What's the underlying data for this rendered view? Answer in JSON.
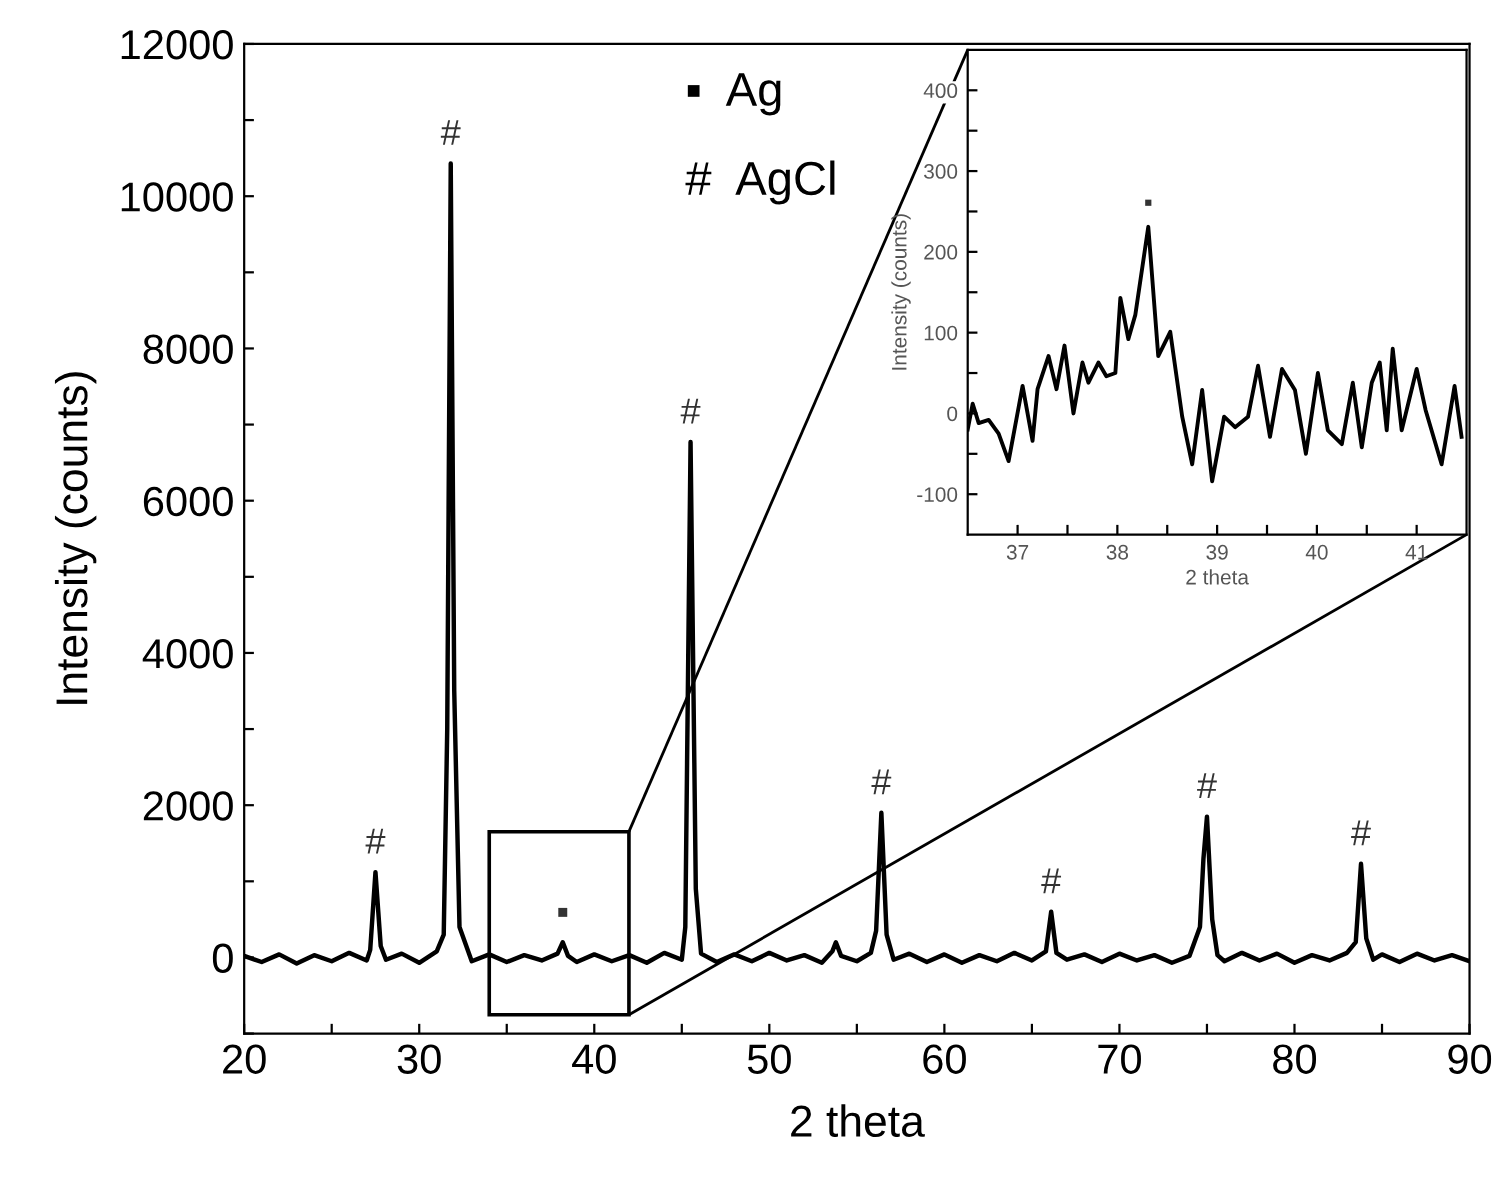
{
  "chart_data": [
    {
      "type": "line",
      "xlabel": "2 theta",
      "ylabel": "Intensity (counts)",
      "x": [
        20,
        21,
        22,
        23,
        24,
        25,
        26,
        27,
        27.2,
        27.5,
        27.8,
        28.1,
        29,
        30,
        31,
        31.4,
        31.6,
        31.8,
        32.0,
        32.3,
        33,
        34,
        35,
        36,
        37,
        37.9,
        38.2,
        38.5,
        39,
        40,
        41,
        42,
        43,
        44,
        45,
        45.2,
        45.5,
        45.8,
        46.1,
        47,
        48,
        49,
        50,
        51,
        52,
        53,
        53.6,
        53.8,
        54.1,
        55,
        55.8,
        56.1,
        56.4,
        56.7,
        57.1,
        58,
        59,
        60,
        61,
        62,
        63,
        64,
        65,
        65.8,
        66.1,
        66.4,
        67,
        68,
        69,
        70,
        71,
        72,
        73,
        74,
        74.6,
        74.8,
        75.0,
        75.3,
        75.6,
        76,
        77,
        78,
        79,
        80,
        81,
        82,
        83,
        83.5,
        83.8,
        84.1,
        84.5,
        85,
        86,
        87,
        88,
        89,
        90
      ],
      "series": [
        {
          "color": "#000000",
          "values": [
            20,
            -60,
            40,
            -80,
            30,
            -50,
            60,
            -40,
            100,
            1120,
            150,
            -30,
            50,
            -70,
            80,
            300,
            3000,
            10430,
            3500,
            400,
            -50,
            40,
            -60,
            30,
            -40,
            50,
            200,
            20,
            -60,
            40,
            -50,
            30,
            -70,
            60,
            -30,
            400,
            6770,
            900,
            50,
            -60,
            40,
            -50,
            60,
            -40,
            30,
            -70,
            80,
            200,
            20,
            -50,
            60,
            350,
            1900,
            300,
            -30,
            50,
            -60,
            40,
            -70,
            30,
            -50,
            60,
            -40,
            80,
            600,
            60,
            -30,
            40,
            -60,
            50,
            -40,
            30,
            -70,
            20,
            400,
            1300,
            1850,
            500,
            30,
            -50,
            60,
            -40,
            50,
            -70,
            30,
            -40,
            60,
            200,
            1230,
            250,
            -30,
            40,
            -60,
            50,
            -40,
            30,
            -50
          ]
        }
      ],
      "xlim": [
        20,
        90
      ],
      "ylim": [
        -1000,
        12000
      ],
      "xticks": [
        20,
        {
          "value": 25,
          "label": null
        },
        30,
        {
          "value": 35,
          "label": null
        },
        40,
        {
          "value": 45,
          "label": null
        },
        50,
        {
          "value": 55,
          "label": null
        },
        60,
        {
          "value": 65,
          "label": null
        },
        70,
        {
          "value": 75,
          "label": null
        },
        80,
        {
          "value": 85,
          "label": null
        },
        90
      ],
      "yticks": [
        {
          "value": -1000,
          "label": null
        },
        0,
        {
          "value": 1000,
          "label": null
        },
        2000,
        {
          "value": 3000,
          "label": null
        },
        4000,
        {
          "value": 5000,
          "label": null
        },
        6000,
        {
          "value": 7000,
          "label": null
        },
        8000,
        {
          "value": 9000,
          "label": null
        },
        10000,
        {
          "value": 11000,
          "label": null
        },
        12000
      ],
      "legend": false,
      "annotations": [
        {
          "text": "#",
          "x": 27.5,
          "y": 1120
        },
        {
          "text": "#",
          "x": 31.8,
          "y": 10430
        },
        {
          "text": "▪",
          "x": 38.2,
          "y": 200
        },
        {
          "text": "#",
          "x": 45.5,
          "y": 6770
        },
        {
          "text": "#",
          "x": 56.4,
          "y": 1900
        },
        {
          "text": "#",
          "x": 66.1,
          "y": 600
        },
        {
          "text": "#",
          "x": 75.0,
          "y": 1850
        },
        {
          "text": "#",
          "x": 83.8,
          "y": 1230
        },
        "▪  Ag",
        "#  AgCl"
      ]
    },
    {
      "type": "line",
      "xlabel": "2 theta",
      "ylabel": "Intensity (counts)",
      "x": [
        36.5,
        36.55,
        36.61,
        36.71,
        36.81,
        36.91,
        37.05,
        37.15,
        37.2,
        37.31,
        37.39,
        37.47,
        37.56,
        37.65,
        37.71,
        37.81,
        37.89,
        37.98,
        38.03,
        38.11,
        38.18,
        38.31,
        38.41,
        38.53,
        38.65,
        38.75,
        38.85,
        38.95,
        39.07,
        39.18,
        39.31,
        39.41,
        39.53,
        39.65,
        39.78,
        39.89,
        40.01,
        40.11,
        40.25,
        40.36,
        40.45,
        40.55,
        40.63,
        40.7,
        40.76,
        40.85,
        41.0,
        41.09,
        41.25,
        41.38,
        41.45
      ],
      "series": [
        {
          "color": "#000000",
          "values": [
            -20,
            12,
            -12,
            -8,
            -25,
            -59,
            34,
            -34,
            30,
            71,
            30,
            84,
            0,
            63,
            38,
            63,
            46,
            50,
            143,
            92,
            122,
            231,
            71,
            101,
            -4,
            -63,
            29,
            -84,
            -4,
            -17,
            -4,
            59,
            -29,
            55,
            29,
            -50,
            50,
            -21,
            -38,
            38,
            -42,
            38,
            63,
            -21,
            80,
            -21,
            55,
            4,
            -63,
            34,
            -29
          ]
        }
      ],
      "xlim": [
        36.5,
        41.5
      ],
      "ylim": [
        -150,
        450
      ],
      "xticks": [
        37,
        {
          "value": 37.5,
          "label": null
        },
        38,
        {
          "value": 38.5,
          "label": null
        },
        39,
        {
          "value": 39.5,
          "label": null
        },
        40,
        {
          "value": 40.5,
          "label": null
        },
        41
      ],
      "yticks": [
        -100,
        {
          "value": -50,
          "label": null
        },
        0,
        {
          "value": 50,
          "label": null
        },
        100,
        {
          "value": 150,
          "label": null
        },
        200,
        {
          "value": 250,
          "label": null
        },
        300,
        {
          "value": 350,
          "label": null
        },
        400
      ],
      "grid": false,
      "legend": false,
      "annotations": [
        {
          "text": "▪",
          "x": 38.31,
          "y": 231
        }
      ]
    }
  ]
}
